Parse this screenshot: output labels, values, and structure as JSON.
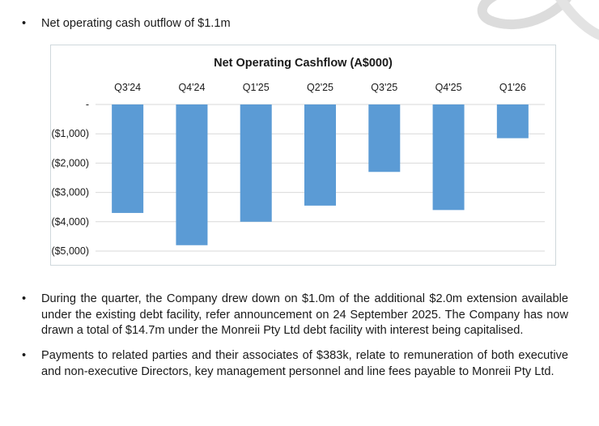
{
  "bullets": [
    {
      "symbol": "•",
      "text": "Net operating cash outflow of $1.1m"
    },
    {
      "symbol": "•",
      "text": "During the quarter, the Company drew down on $1.0m of the additional $2.0m extension available under the existing debt facility, refer announcement on 24 September 2025. The Company has now drawn a total of $14.7m under the Monreii Pty Ltd debt facility with interest being capitalised."
    },
    {
      "symbol": "•",
      "text": "Payments to related parties and their associates of $383k, relate to remuneration of both executive and non-executive Directors, key management personnel and line fees payable to Monreii Pty Ltd."
    }
  ],
  "chart_data": {
    "type": "bar",
    "title": "Net Operating Cashflow (A$000)",
    "categories": [
      "Q3'24",
      "Q4'24",
      "Q1'25",
      "Q2'25",
      "Q3'25",
      "Q4'25",
      "Q1'26"
    ],
    "values": [
      -3700,
      -4800,
      -4000,
      -3450,
      -2300,
      -3600,
      -1150
    ],
    "ylim": [
      -5000,
      0
    ],
    "y_ticks": [
      0,
      -1000,
      -2000,
      -3000,
      -4000,
      -5000
    ],
    "y_tick_labels": [
      "-",
      "($1,000)",
      "($2,000)",
      "($3,000)",
      "($4,000)",
      "($5,000)"
    ],
    "xaxis_position": "top",
    "grid": true,
    "bar_color": "#5b9bd5",
    "grid_color": "#d9d9d9"
  }
}
